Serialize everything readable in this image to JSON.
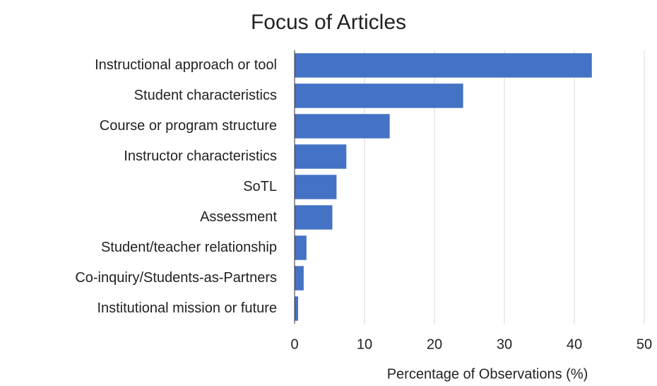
{
  "chart_data": {
    "type": "hbar",
    "title": "Focus of Articles",
    "x_label": "Percentage of Observations (%)",
    "categories": [
      "Instructional approach or tool",
      "Student characteristics",
      "Course or program structure",
      "Instructor characteristics",
      "SoTL",
      "Assessment",
      "Student/teacher relationship",
      "Co-inquiry/Students-as-Partners",
      "Institutional mission or future"
    ],
    "values": [
      42.5,
      24.1,
      13.6,
      7.4,
      6.0,
      5.4,
      1.7,
      1.3,
      0.5
    ],
    "color": "#4472c4",
    "xlim": [
      0,
      50
    ],
    "xticks": [
      0,
      10,
      20,
      30,
      40,
      50
    ],
    "grid": true
  }
}
